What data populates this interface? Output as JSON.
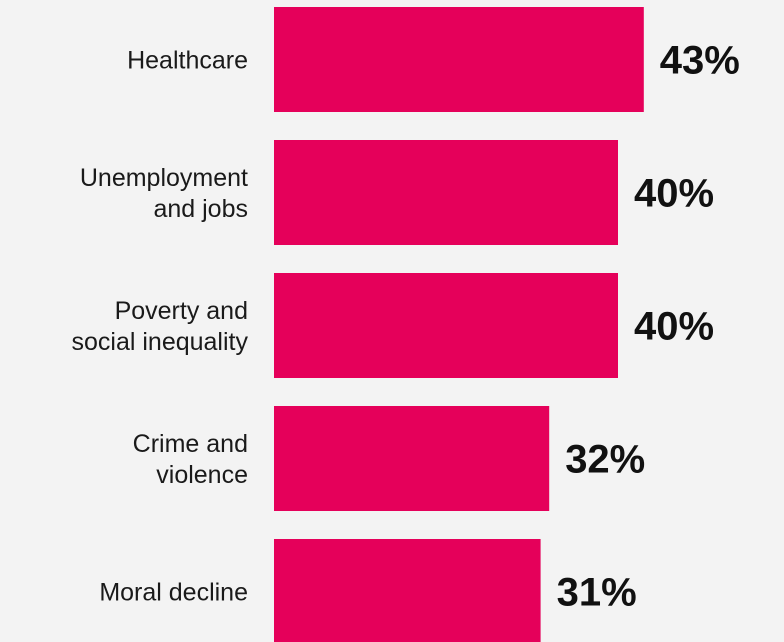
{
  "chart_data": {
    "type": "bar",
    "orientation": "horizontal",
    "categories": [
      [
        "Healthcare"
      ],
      [
        "Unemployment",
        "and jobs"
      ],
      [
        "Poverty and",
        "social inequality"
      ],
      [
        "Crime and",
        "violence"
      ],
      [
        "Moral decline"
      ]
    ],
    "values": [
      43,
      40,
      40,
      32,
      31
    ],
    "value_labels": [
      "43%",
      "40%",
      "40%",
      "32%",
      "31%"
    ],
    "unit": "%",
    "xlim": [
      0,
      100
    ],
    "grid": false,
    "legend": "none",
    "bar_color": "#e5005a",
    "background_color": "#f3f3f3"
  }
}
